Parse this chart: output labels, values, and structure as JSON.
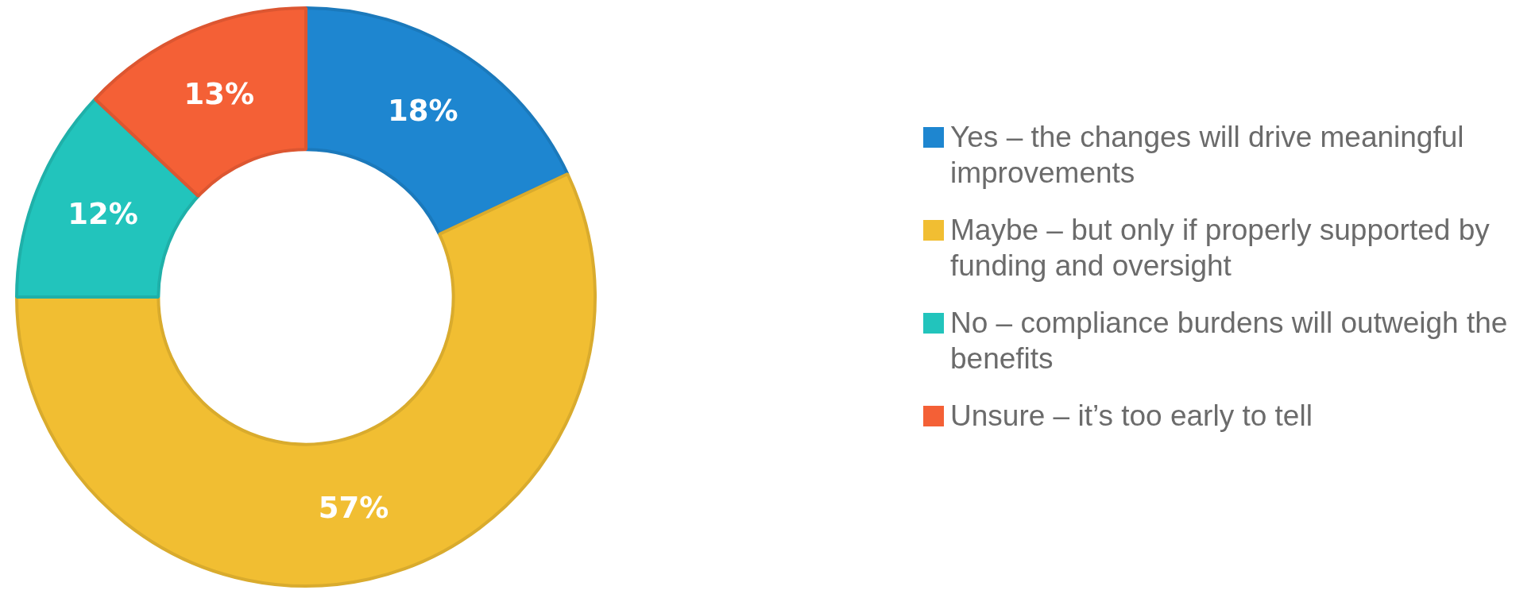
{
  "chart_data": {
    "type": "donut",
    "categories": [
      "Yes – the changes will drive meaningful improvements",
      "Maybe – but only if properly supported by funding and oversight",
      "No – compliance burdens will outweigh the benefits",
      "Unsure – it’s too early to tell"
    ],
    "values": [
      18,
      57,
      12,
      13
    ],
    "value_labels": [
      "18%",
      "57%",
      "12%",
      "13%"
    ],
    "colors": [
      "#1e86d0",
      "#f1be32",
      "#22c4bc",
      "#f46036"
    ],
    "legend": "right"
  }
}
